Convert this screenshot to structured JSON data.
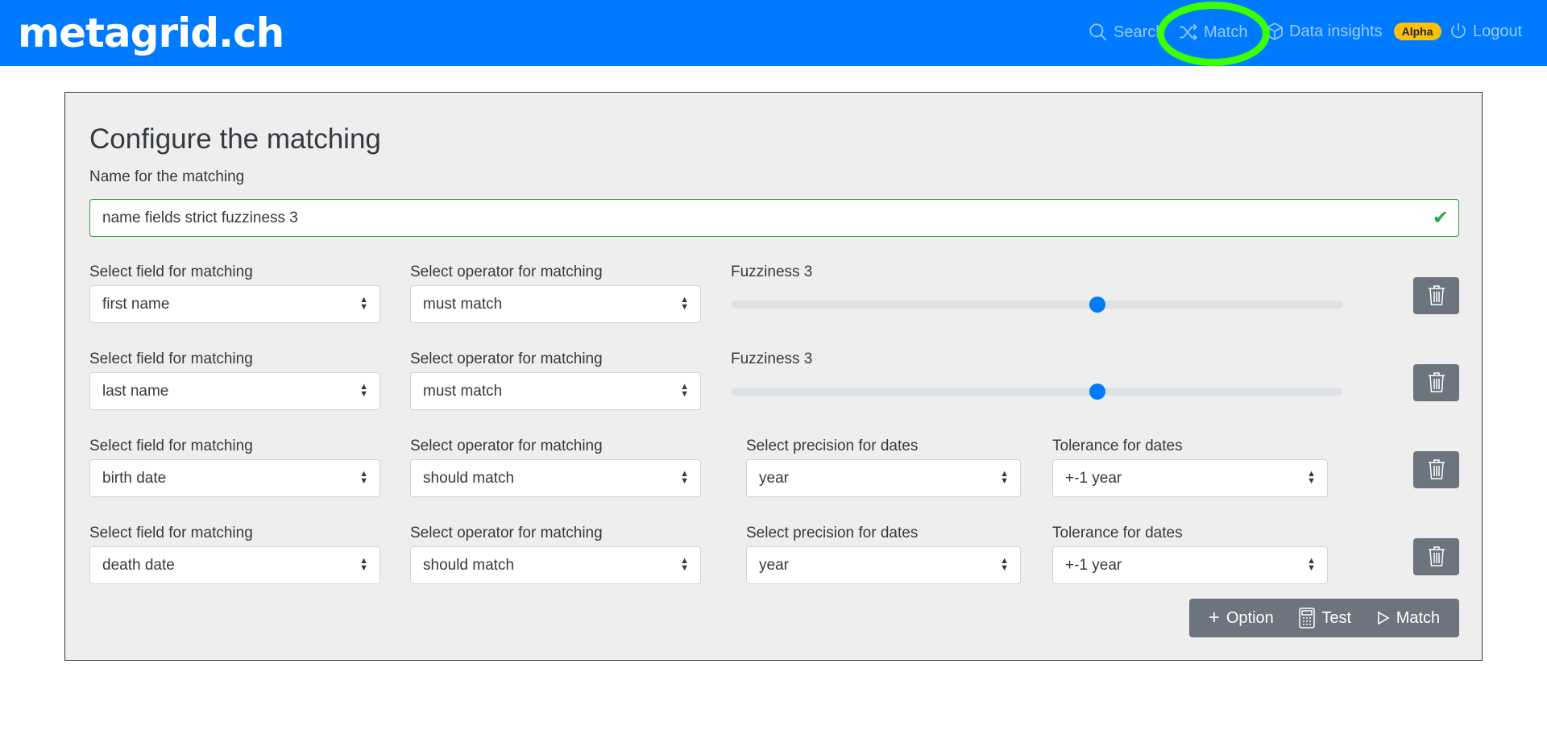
{
  "nav": {
    "logo": "metagrid.ch",
    "items": [
      {
        "label": "Search",
        "icon": "search-icon"
      },
      {
        "label": "Match",
        "icon": "shuffle-icon"
      },
      {
        "label": "Data insights",
        "icon": "cube-icon",
        "badge": "Alpha"
      },
      {
        "label": "Logout",
        "icon": "power-icon"
      }
    ],
    "highlight_color": "#3cff00",
    "brand_color": "#007bff"
  },
  "form": {
    "title": "Configure the matching",
    "name_label": "Name for the matching",
    "name_value": "name fields strict fuzziness 3",
    "rows": [
      {
        "field_label": "Select field for matching",
        "field": "first name",
        "operator_label": "Select operator for matching",
        "operator": "must match",
        "fuzziness_label": "Fuzziness 3",
        "fuzziness": 3
      },
      {
        "field_label": "Select field for matching",
        "field": "last name",
        "operator_label": "Select operator for matching",
        "operator": "must match",
        "fuzziness_label": "Fuzziness 3",
        "fuzziness": 3
      },
      {
        "field_label": "Select field for matching",
        "field": "birth date",
        "operator_label": "Select operator for matching",
        "operator": "should match",
        "precision_label": "Select precision for dates",
        "precision": "year",
        "tolerance_label": "Tolerance for dates",
        "tolerance": "+-1 year"
      },
      {
        "field_label": "Select field for matching",
        "field": "death date",
        "operator_label": "Select operator for matching",
        "operator": "should match",
        "precision_label": "Select precision for dates",
        "precision": "year",
        "tolerance_label": "Tolerance for dates",
        "tolerance": "+-1 year"
      }
    ],
    "fuzziness_max": 5,
    "buttons": {
      "option": "Option",
      "test": "Test",
      "match": "Match"
    }
  }
}
